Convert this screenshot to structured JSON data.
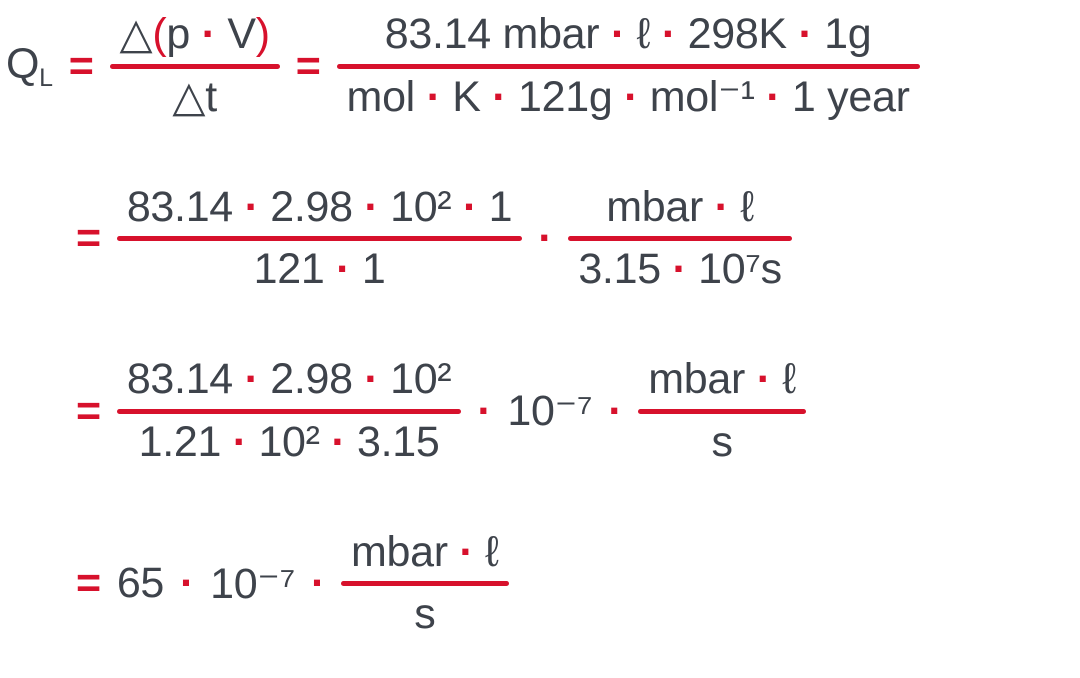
{
  "colors": {
    "background": "#ffffff",
    "ink": "#3e434b",
    "red": "#d7112c"
  },
  "formula": {
    "description": "leak-rate-derivation",
    "rows": [
      {
        "name": "equation-line-1",
        "nodes": [
          {
            "base": "Q",
            "sub": "L",
            "color": "ink"
          },
          {
            "text": "=",
            "color": "red",
            "bold": true
          },
          {
            "frac": {
              "num": [
                {
                  "text": "△",
                  "color": "ink"
                },
                {
                  "text": "(",
                  "color": "red"
                },
                {
                  "text": "p",
                  "color": "ink"
                },
                {
                  "text": " · ",
                  "color": "red",
                  "dot": true
                },
                {
                  "text": "V",
                  "color": "ink"
                },
                {
                  "text": ")",
                  "color": "red"
                }
              ],
              "den": [
                {
                  "text": "△t",
                  "color": "ink"
                }
              ]
            }
          },
          {
            "text": "=",
            "color": "red",
            "bold": true
          },
          {
            "frac": {
              "num": [
                {
                  "text": "83.14 mbar",
                  "color": "ink"
                },
                {
                  "text": " · ",
                  "color": "red",
                  "dot": true
                },
                {
                  "text": "ℓ",
                  "color": "ink"
                },
                {
                  "text": " · ",
                  "color": "red",
                  "dot": true
                },
                {
                  "text": "298K",
                  "color": "ink"
                },
                {
                  "text": " · ",
                  "color": "red",
                  "dot": true
                },
                {
                  "text": "1g",
                  "color": "ink"
                }
              ],
              "den": [
                {
                  "text": "mol",
                  "color": "ink"
                },
                {
                  "text": " · ",
                  "color": "red",
                  "dot": true
                },
                {
                  "text": "K",
                  "color": "ink"
                },
                {
                  "text": " · ",
                  "color": "red",
                  "dot": true
                },
                {
                  "text": "121g",
                  "color": "ink"
                },
                {
                  "text": " · ",
                  "color": "red",
                  "dot": true
                },
                {
                  "text": "mol⁻¹",
                  "color": "ink"
                },
                {
                  "text": " · ",
                  "color": "red",
                  "dot": true
                },
                {
                  "text": "1 year",
                  "color": "ink"
                }
              ]
            }
          }
        ]
      },
      {
        "name": "equation-line-2",
        "nodes": [
          {
            "text": "=",
            "color": "red",
            "bold": true
          },
          {
            "frac": {
              "num": [
                {
                  "text": "83.14",
                  "color": "ink"
                },
                {
                  "text": " · ",
                  "color": "red",
                  "dot": true
                },
                {
                  "text": "2.98",
                  "color": "ink"
                },
                {
                  "text": " · ",
                  "color": "red",
                  "dot": true
                },
                {
                  "text": "10²",
                  "color": "ink"
                },
                {
                  "text": " · ",
                  "color": "red",
                  "dot": true
                },
                {
                  "text": "1",
                  "color": "ink"
                }
              ],
              "den": [
                {
                  "text": "121",
                  "color": "ink"
                },
                {
                  "text": " · ",
                  "color": "red",
                  "dot": true
                },
                {
                  "text": "1",
                  "color": "ink"
                }
              ]
            }
          },
          {
            "text": "·",
            "color": "red",
            "dot": true
          },
          {
            "frac": {
              "num": [
                {
                  "text": "mbar",
                  "color": "ink"
                },
                {
                  "text": " · ",
                  "color": "red",
                  "dot": true
                },
                {
                  "text": "ℓ",
                  "color": "ink"
                }
              ],
              "den": [
                {
                  "text": "3.15",
                  "color": "ink"
                },
                {
                  "text": " · ",
                  "color": "red",
                  "dot": true
                },
                {
                  "text": "10⁷s",
                  "color": "ink"
                }
              ]
            }
          }
        ]
      },
      {
        "name": "equation-line-3",
        "nodes": [
          {
            "text": "=",
            "color": "red",
            "bold": true
          },
          {
            "frac": {
              "num": [
                {
                  "text": "83.14",
                  "color": "ink"
                },
                {
                  "text": " · ",
                  "color": "red",
                  "dot": true
                },
                {
                  "text": "2.98",
                  "color": "ink"
                },
                {
                  "text": " · ",
                  "color": "red",
                  "dot": true
                },
                {
                  "text": "10²",
                  "color": "ink"
                }
              ],
              "den": [
                {
                  "text": "1.21",
                  "color": "ink"
                },
                {
                  "text": " · ",
                  "color": "red",
                  "dot": true
                },
                {
                  "text": "10²",
                  "color": "ink"
                },
                {
                  "text": " · ",
                  "color": "red",
                  "dot": true
                },
                {
                  "text": "3.15",
                  "color": "ink"
                }
              ]
            }
          },
          {
            "text": "·",
            "color": "red",
            "dot": true
          },
          {
            "text": "10⁻⁷",
            "color": "ink"
          },
          {
            "text": "·",
            "color": "red",
            "dot": true
          },
          {
            "frac": {
              "num": [
                {
                  "text": "mbar",
                  "color": "ink"
                },
                {
                  "text": " · ",
                  "color": "red",
                  "dot": true
                },
                {
                  "text": "ℓ",
                  "color": "ink"
                }
              ],
              "den": [
                {
                  "text": "s",
                  "color": "ink"
                }
              ]
            }
          }
        ]
      },
      {
        "name": "equation-line-4",
        "nodes": [
          {
            "text": "=",
            "color": "red",
            "bold": true
          },
          {
            "text": "65",
            "color": "ink"
          },
          {
            "text": "·",
            "color": "red",
            "dot": true
          },
          {
            "text": "10⁻⁷",
            "color": "ink"
          },
          {
            "text": "·",
            "color": "red",
            "dot": true
          },
          {
            "frac": {
              "num": [
                {
                  "text": "mbar",
                  "color": "ink"
                },
                {
                  "text": " · ",
                  "color": "red",
                  "dot": true
                },
                {
                  "text": "ℓ",
                  "color": "ink"
                }
              ],
              "den": [
                {
                  "text": "s",
                  "color": "ink"
                }
              ]
            }
          }
        ]
      }
    ]
  }
}
